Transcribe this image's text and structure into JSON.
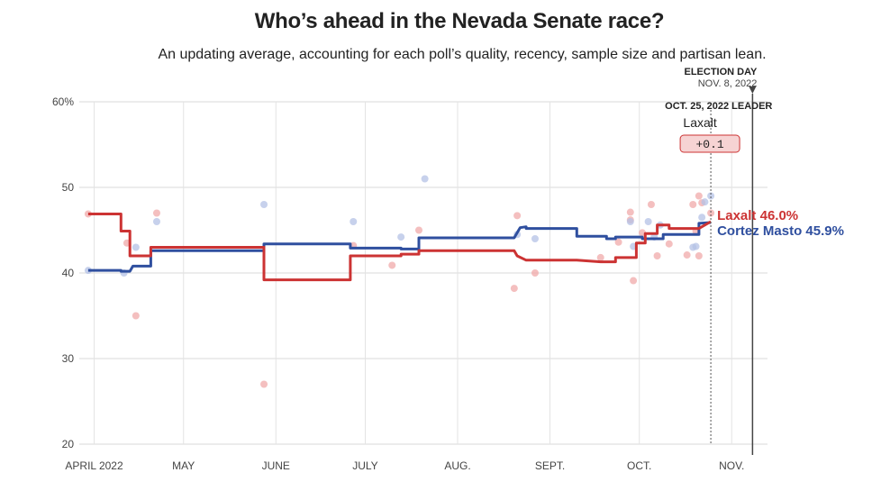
{
  "chart_data": {
    "type": "line",
    "title": "Who’s ahead in the Nevada Senate race?",
    "subtitle": "An updating average, accounting for each poll’s quality, recency, sample size and partisan lean.",
    "ylim": [
      20,
      60
    ],
    "y_ticks": [
      "60%",
      "50",
      "40",
      "30",
      "20"
    ],
    "y_tick_values": [
      60,
      50,
      40,
      30,
      20
    ],
    "x_range": [
      "2022-03-27",
      "2022-11-10"
    ],
    "x_ticks": [
      {
        "label": "APRIL 2022",
        "date": "2022-04-01"
      },
      {
        "label": "MAY",
        "date": "2022-05-01"
      },
      {
        "label": "JUNE",
        "date": "2022-06-01"
      },
      {
        "label": "JULY",
        "date": "2022-07-01"
      },
      {
        "label": "AUG.",
        "date": "2022-08-01"
      },
      {
        "label": "SEPT.",
        "date": "2022-09-01"
      },
      {
        "label": "OCT.",
        "date": "2022-10-01"
      },
      {
        "label": "NOV.",
        "date": "2022-11-01"
      }
    ],
    "series": [
      {
        "name": "Laxalt",
        "color": "#cc3333",
        "final_label": "Laxalt 46.0%",
        "points": [
          [
            "2022-03-30",
            46.9
          ],
          [
            "2022-04-10",
            46.9
          ],
          [
            "2022-04-10",
            44.9
          ],
          [
            "2022-04-13",
            44.9
          ],
          [
            "2022-04-13",
            42.0
          ],
          [
            "2022-04-20",
            42.0
          ],
          [
            "2022-04-20",
            43.0
          ],
          [
            "2022-05-28",
            43.0
          ],
          [
            "2022-05-28",
            39.2
          ],
          [
            "2022-06-26",
            39.2
          ],
          [
            "2022-06-26",
            42.0
          ],
          [
            "2022-07-13",
            42.0
          ],
          [
            "2022-07-13",
            42.2
          ],
          [
            "2022-07-19",
            42.2
          ],
          [
            "2022-07-19",
            42.6
          ],
          [
            "2022-08-20",
            42.6
          ],
          [
            "2022-08-21",
            42.0
          ],
          [
            "2022-08-24",
            41.5
          ],
          [
            "2022-09-10",
            41.5
          ],
          [
            "2022-09-18",
            41.3
          ],
          [
            "2022-09-23",
            41.3
          ],
          [
            "2022-09-23",
            41.8
          ],
          [
            "2022-09-30",
            41.8
          ],
          [
            "2022-09-30",
            43.5
          ],
          [
            "2022-10-02",
            43.5
          ],
          [
            "2022-10-03",
            43.5
          ],
          [
            "2022-10-03",
            44.6
          ],
          [
            "2022-10-07",
            44.6
          ],
          [
            "2022-10-07",
            45.6
          ],
          [
            "2022-10-11",
            45.6
          ],
          [
            "2022-10-11",
            45.2
          ],
          [
            "2022-10-21",
            45.2
          ],
          [
            "2022-10-25",
            46.0
          ]
        ],
        "polls": [
          [
            "2022-03-30",
            46.9
          ],
          [
            "2022-04-12",
            43.5
          ],
          [
            "2022-04-15",
            35.0
          ],
          [
            "2022-04-22",
            47.0
          ],
          [
            "2022-05-28",
            27.0
          ],
          [
            "2022-06-27",
            43.2
          ],
          [
            "2022-07-10",
            40.9
          ],
          [
            "2022-07-19",
            45.0
          ],
          [
            "2022-08-20",
            38.2
          ],
          [
            "2022-08-21",
            46.7
          ],
          [
            "2022-08-27",
            40.0
          ],
          [
            "2022-09-18",
            41.8
          ],
          [
            "2022-09-24",
            43.6
          ],
          [
            "2022-09-28",
            47.1
          ],
          [
            "2022-09-28",
            46.2
          ],
          [
            "2022-09-29",
            39.1
          ],
          [
            "2022-10-02",
            44.7
          ],
          [
            "2022-10-05",
            48.0
          ],
          [
            "2022-10-07",
            42.0
          ],
          [
            "2022-10-11",
            43.4
          ],
          [
            "2022-10-17",
            42.1
          ],
          [
            "2022-10-19",
            48.0
          ],
          [
            "2022-10-20",
            44.9
          ],
          [
            "2022-10-21",
            49.0
          ],
          [
            "2022-10-21",
            42.0
          ],
          [
            "2022-10-22",
            48.2
          ],
          [
            "2022-10-25",
            47.0
          ]
        ]
      },
      {
        "name": "Cortez Masto",
        "color": "#2f4f9f",
        "final_label": "Cortez Masto 45.9%",
        "points": [
          [
            "2022-03-30",
            40.3
          ],
          [
            "2022-04-10",
            40.3
          ],
          [
            "2022-04-10",
            40.2
          ],
          [
            "2022-04-13",
            40.2
          ],
          [
            "2022-04-14",
            40.8
          ],
          [
            "2022-04-20",
            40.8
          ],
          [
            "2022-04-20",
            42.6
          ],
          [
            "2022-05-28",
            42.6
          ],
          [
            "2022-05-28",
            43.4
          ],
          [
            "2022-06-26",
            43.4
          ],
          [
            "2022-06-26",
            42.9
          ],
          [
            "2022-07-13",
            42.9
          ],
          [
            "2022-07-13",
            42.8
          ],
          [
            "2022-07-19",
            42.8
          ],
          [
            "2022-07-19",
            44.1
          ],
          [
            "2022-08-20",
            44.1
          ],
          [
            "2022-08-22",
            45.3
          ],
          [
            "2022-08-24",
            45.4
          ],
          [
            "2022-08-24",
            45.2
          ],
          [
            "2022-09-10",
            45.2
          ],
          [
            "2022-09-10",
            44.3
          ],
          [
            "2022-09-20",
            44.3
          ],
          [
            "2022-09-20",
            44.0
          ],
          [
            "2022-09-23",
            44.0
          ],
          [
            "2022-09-23",
            44.2
          ],
          [
            "2022-10-02",
            44.2
          ],
          [
            "2022-10-02",
            44.0
          ],
          [
            "2022-10-09",
            44.0
          ],
          [
            "2022-10-09",
            44.5
          ],
          [
            "2022-10-21",
            44.5
          ],
          [
            "2022-10-21",
            45.8
          ],
          [
            "2022-10-25",
            45.9
          ]
        ],
        "polls": [
          [
            "2022-03-30",
            40.3
          ],
          [
            "2022-04-11",
            40.0
          ],
          [
            "2022-04-15",
            43.0
          ],
          [
            "2022-04-22",
            46.0
          ],
          [
            "2022-05-28",
            48.0
          ],
          [
            "2022-06-27",
            46.0
          ],
          [
            "2022-07-13",
            44.2
          ],
          [
            "2022-07-21",
            51.0
          ],
          [
            "2022-08-21",
            44.5
          ],
          [
            "2022-08-27",
            44.0
          ],
          [
            "2022-09-28",
            46.0
          ],
          [
            "2022-09-29",
            43.1
          ],
          [
            "2022-10-04",
            46.0
          ],
          [
            "2022-10-06",
            44.2
          ],
          [
            "2022-10-08",
            45.6
          ],
          [
            "2022-10-19",
            43.0
          ],
          [
            "2022-10-20",
            43.1
          ],
          [
            "2022-10-22",
            46.5
          ],
          [
            "2022-10-23",
            48.3
          ],
          [
            "2022-10-25",
            49.0
          ]
        ]
      }
    ],
    "annotations": {
      "election_day_label": "ELECTION DAY",
      "election_day_date_label": "NOV. 8, 2022",
      "election_day_date": "2022-11-08",
      "as_of_label": "OCT. 25, 2022 LEADER",
      "as_of_date": "2022-10-25",
      "leader_name": "Laxalt",
      "leader_margin": "+0.1"
    }
  }
}
